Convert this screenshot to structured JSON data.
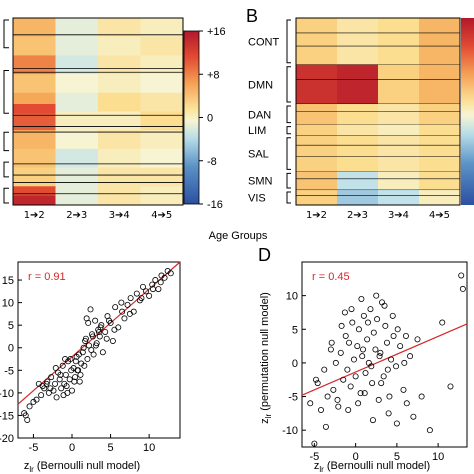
{
  "panels": {
    "B": "B",
    "D": "D"
  },
  "heatmap_x_label": "Age Groups",
  "heatmap_left": {
    "categories": [
      "1➔2",
      "2➔3",
      "3➔4",
      "4➔5"
    ]
  },
  "colorbar": {
    "ticks": [
      "+16",
      "+8",
      "0",
      "-8",
      "-16"
    ],
    "values": [
      16,
      8,
      0,
      -8,
      -16
    ],
    "colors": {
      "high": "#c0272d",
      "mid": "#fdf5bd",
      "low": "#2c4fa2"
    }
  },
  "heatmap_right": {
    "categories": [
      "1➔2",
      "2➔3",
      "3➔4",
      "4➔5"
    ],
    "networks": [
      "CONT",
      "DMN",
      "DAN",
      "LIM",
      "SAL",
      "SMN",
      "VIS"
    ]
  },
  "chart_data": [
    {
      "type": "heatmap",
      "categories": [
        "1➔2",
        "2➔3",
        "3➔4",
        "4➔5"
      ],
      "xlabel": "Age Groups",
      "colorbar_range": [
        -16,
        16
      ],
      "row_bands": [
        {
          "values": [
            6,
            -1,
            2,
            1
          ]
        },
        {
          "values": [
            5,
            -1,
            1,
            2
          ]
        },
        {
          "values": [
            9,
            -2,
            2,
            1
          ]
        },
        {
          "values": [
            5,
            0,
            1,
            0
          ]
        },
        {
          "values": [
            7,
            -1,
            3,
            2
          ]
        },
        {
          "values": [
            11,
            1,
            1,
            3
          ]
        },
        {
          "values": [
            6,
            0,
            2,
            1
          ]
        },
        {
          "values": [
            5,
            -2,
            1,
            0
          ]
        },
        {
          "values": [
            4,
            -1,
            2,
            2
          ]
        },
        {
          "values": [
            12,
            -1,
            2,
            1
          ]
        }
      ]
    },
    {
      "type": "heatmap",
      "categories": [
        "1➔2",
        "2➔3",
        "3➔4",
        "4➔5"
      ],
      "xlabel": "Age Groups",
      "rows": [
        "CONT",
        "DMN",
        "DAN",
        "LIM",
        "SAL",
        "SMN",
        "VIS"
      ],
      "values": [
        [
          4,
          2,
          3,
          6
        ],
        [
          14,
          15,
          4,
          6
        ],
        [
          5,
          3,
          2,
          4
        ],
        [
          4,
          2,
          1,
          3
        ],
        [
          4,
          3,
          2,
          3
        ],
        [
          5,
          -3,
          1,
          3
        ],
        [
          4,
          -5,
          -3,
          1
        ]
      ]
    },
    {
      "type": "scatter",
      "xlabel": "zlr (Bernoulli null model)",
      "annotation": "r = 0.91",
      "r": 0.91,
      "xlim": [
        -7,
        14
      ],
      "ylim": [
        -20,
        19
      ],
      "xticks": [
        -5,
        0,
        5,
        10
      ],
      "yticks": [
        15,
        10,
        5,
        0,
        -5,
        -10,
        -15,
        -20
      ],
      "fit_line": {
        "x": [
          -7,
          14
        ],
        "y": [
          -12.5,
          19
        ]
      },
      "points": {
        "x": [
          -6.2,
          -5.5,
          -5.0,
          -4.3,
          -4.0,
          -3.6,
          -3.2,
          -3.0,
          -2.7,
          -2.4,
          -2.2,
          -2.0,
          -1.8,
          -1.6,
          -1.4,
          -1.2,
          -1.0,
          -0.8,
          -0.6,
          -0.5,
          -0.3,
          -0.1,
          0.0,
          0.2,
          0.4,
          0.6,
          0.8,
          1.0,
          1.2,
          1.4,
          1.6,
          1.8,
          2.0,
          2.2,
          2.4,
          2.6,
          2.8,
          3.0,
          3.2,
          3.4,
          3.6,
          3.8,
          4.0,
          4.3,
          4.6,
          5.0,
          5.3,
          5.6,
          6.0,
          6.4,
          6.8,
          7.2,
          7.6,
          8.0,
          8.4,
          8.8,
          9.2,
          9.6,
          10.0,
          10.4,
          10.8,
          11.2,
          11.6,
          12.0,
          12.4,
          12.8,
          -3.8,
          -2.8,
          -1.5,
          -0.7,
          0.5,
          1.5,
          2.5,
          3.5,
          4.5,
          1.1,
          0.3,
          -0.2,
          2.1,
          3.1,
          -1.1,
          0.9,
          1.9,
          6.5,
          7.5,
          9.0,
          10.5,
          11.5,
          5.5,
          4.8,
          -4.6,
          -3.3,
          -2.1,
          -0.9,
          0.7,
          1.7,
          2.7,
          3.7,
          -6.0,
          -5.8
        ],
        "y": [
          -14.5,
          -13.0,
          -12.0,
          -8.0,
          -10.5,
          -9.0,
          -7.5,
          -10.0,
          -6.5,
          -9.5,
          -8.0,
          -11.0,
          -5.5,
          -7.0,
          -9.0,
          -4.0,
          -8.0,
          -6.0,
          -10.0,
          -3.0,
          -7.0,
          -5.0,
          -9.5,
          -4.5,
          -6.5,
          -2.0,
          -5.0,
          -7.5,
          -3.5,
          -1.0,
          -4.0,
          2.0,
          -2.5,
          0.5,
          8.5,
          3.0,
          -1.5,
          6.0,
          1.0,
          4.0,
          2.5,
          5.0,
          -1.0,
          3.5,
          7.0,
          5.5,
          1.5,
          9.0,
          4.5,
          10.0,
          6.5,
          9.5,
          11.0,
          8.0,
          12.0,
          10.5,
          13.5,
          12.5,
          11.5,
          14.0,
          15.0,
          13.0,
          16.0,
          15.5,
          17.0,
          16.5,
          -8.5,
          -9.0,
          -6.0,
          -8.5,
          -3.0,
          0.0,
          -0.5,
          3.5,
          2.0,
          -6.0,
          -7.5,
          -2.5,
          5.5,
          0.5,
          -10.5,
          -1.5,
          6.5,
          8.0,
          7.5,
          11.0,
          13.0,
          14.5,
          4.0,
          6.0,
          -11.5,
          -8.0,
          -4.5,
          -2.5,
          -5.0,
          1.5,
          2.5,
          4.5,
          -15.0,
          -16.0
        ]
      }
    },
    {
      "type": "scatter",
      "xlabel": "zlr (Bernoulli null model)",
      "ylabel": "zlr (permutation null model)",
      "annotation": "r = 0.45",
      "r": 0.45,
      "xlim": [
        -6.5,
        13.5
      ],
      "ylim": [
        -12.5,
        15
      ],
      "xticks": [
        -5,
        0,
        5,
        10
      ],
      "yticks": [
        10,
        5,
        0,
        -5,
        -10
      ],
      "fit_line": {
        "x": [
          -6.5,
          13.5
        ],
        "y": [
          -4.8,
          5.8
        ]
      },
      "points": {
        "x": [
          -5.5,
          -5.0,
          -4.6,
          -4.2,
          -3.8,
          -3.4,
          -3.0,
          -2.7,
          -2.4,
          -2.1,
          -1.8,
          -1.5,
          -1.2,
          -1.0,
          -0.8,
          -0.6,
          -0.4,
          -0.2,
          0.0,
          0.2,
          0.4,
          0.6,
          0.8,
          1.0,
          1.2,
          1.4,
          1.6,
          1.8,
          2.0,
          2.2,
          2.4,
          2.6,
          2.8,
          3.0,
          3.2,
          3.4,
          3.6,
          3.8,
          4.0,
          4.3,
          4.6,
          5.0,
          5.4,
          5.8,
          6.2,
          6.6,
          7.0,
          7.5,
          8.0,
          9.0,
          10.5,
          11.5,
          12.8,
          13.0,
          -3.6,
          -2.2,
          -0.9,
          0.3,
          1.1,
          2.1,
          3.1,
          4.1,
          5.1,
          6.1,
          -1.3,
          0.7,
          1.5,
          2.5,
          3.5,
          4.5,
          -4.8,
          -2.9,
          -1.7,
          -0.5,
          0.9,
          1.9,
          2.9,
          3.9,
          4.9,
          5.9
        ],
        "y": [
          -6.0,
          -12.0,
          -3.0,
          -7.0,
          -1.0,
          -5.0,
          2.0,
          -4.0,
          0.0,
          -6.5,
          1.5,
          -2.5,
          4.0,
          -1.0,
          3.0,
          -3.5,
          6.0,
          0.5,
          -2.0,
          2.5,
          5.0,
          -4.5,
          1.0,
          7.0,
          -1.5,
          3.5,
          0.0,
          8.0,
          -3.0,
          4.5,
          2.0,
          6.5,
          -5.5,
          1.5,
          9.0,
          -2.0,
          5.5,
          3.0,
          -7.5,
          0.5,
          4.0,
          -9.0,
          2.5,
          -4.0,
          -6.0,
          1.0,
          -8.0,
          3.5,
          -5.0,
          -10.0,
          6.0,
          -3.5,
          13.0,
          11.0,
          -9.5,
          -5.5,
          -7.0,
          -6.0,
          -4.5,
          -8.5,
          -3.0,
          -5.0,
          5.0,
          4.0,
          7.5,
          9.5,
          6.0,
          10.0,
          8.5,
          7.0,
          -2.5,
          3.0,
          5.5,
          8.0,
          2.0,
          -0.5,
          1.0,
          -1.0,
          -0.5,
          0.0
        ]
      }
    }
  ],
  "scatter_c": {
    "r_label": "r = 0.91",
    "xlabel_main": "z",
    "xlabel_sub": "lr",
    "xlabel_rest": " (Bernoulli null model)"
  },
  "scatter_d": {
    "r_label": "r = 0.45",
    "xlabel_main": "z",
    "xlabel_sub": "lr",
    "xlabel_rest": " (Bernoulli null model)",
    "ylabel_main": "z",
    "ylabel_sub": "lr",
    "ylabel_rest": " (permutation null model)"
  }
}
